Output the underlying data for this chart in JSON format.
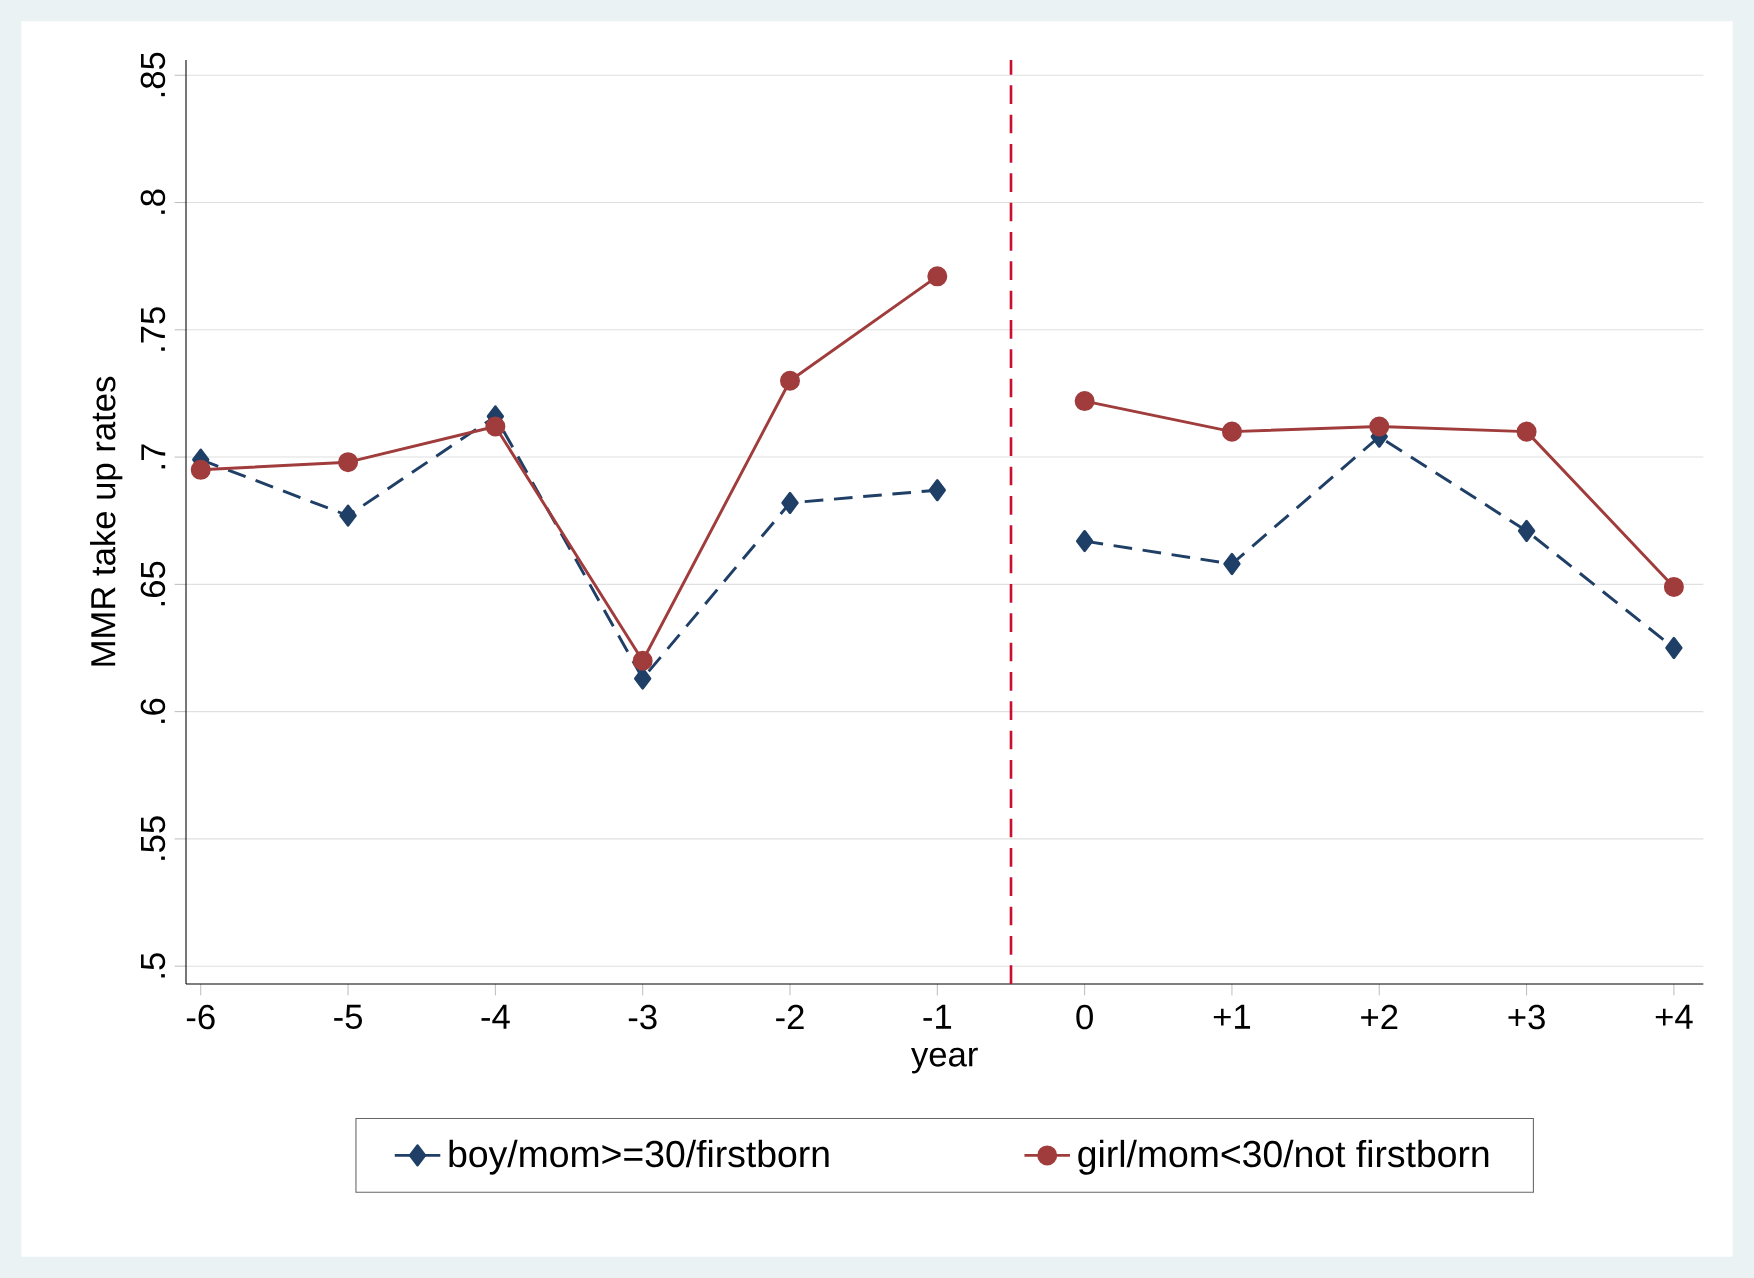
{
  "chart_data": {
    "type": "line",
    "xlabel": "year",
    "ylabel": "MMR take up rates",
    "x": [
      -6,
      -5,
      -4,
      -3,
      -2,
      -1,
      -0.5,
      0,
      1,
      2,
      3,
      4
    ],
    "series": [
      {
        "name": "boy/mom>=30/firstborn",
        "color": "#1f3f66",
        "marker": "diamond",
        "line_style": "dashed",
        "values": [
          0.699,
          0.677,
          0.716,
          0.613,
          0.682,
          0.687,
          null,
          0.667,
          0.658,
          0.708,
          0.671,
          0.625
        ]
      },
      {
        "name": "girl/mom<30/not firstborn",
        "color": "#a03c3c",
        "marker": "circle",
        "line_style": "solid",
        "values": [
          0.695,
          0.698,
          0.712,
          0.62,
          0.73,
          0.771,
          null,
          0.722,
          0.71,
          0.712,
          0.71,
          0.649
        ]
      }
    ],
    "xlim": [
      -6.1,
      4.2
    ],
    "xticks": [
      {
        "value": -6,
        "label": "-6"
      },
      {
        "value": -5,
        "label": "-5"
      },
      {
        "value": -4,
        "label": "-4"
      },
      {
        "value": -3,
        "label": "-3"
      },
      {
        "value": -2,
        "label": "-2"
      },
      {
        "value": -1,
        "label": "-1"
      },
      {
        "value": 0,
        "label": "0"
      },
      {
        "value": 1,
        "label": "+1"
      },
      {
        "value": 2,
        "label": "+2"
      },
      {
        "value": 3,
        "label": "+3"
      },
      {
        "value": 4,
        "label": "+4"
      }
    ],
    "ylim": [
      0.493,
      0.856
    ],
    "yticks": [
      {
        "value": 0.5,
        "label": ".5"
      },
      {
        "value": 0.55,
        "label": ".55"
      },
      {
        "value": 0.6,
        "label": ".6"
      },
      {
        "value": 0.65,
        "label": ".65"
      },
      {
        "value": 0.7,
        "label": ".7"
      },
      {
        "value": 0.75,
        "label": ".75"
      },
      {
        "value": 0.8,
        "label": ".8"
      },
      {
        "value": 0.85,
        "label": ".85"
      }
    ],
    "ref_lines": [
      {
        "axis": "x",
        "value": -0.5,
        "color": "#c8102e",
        "line_style": "dashed"
      }
    ],
    "grid": "y",
    "legend": "bottom"
  }
}
